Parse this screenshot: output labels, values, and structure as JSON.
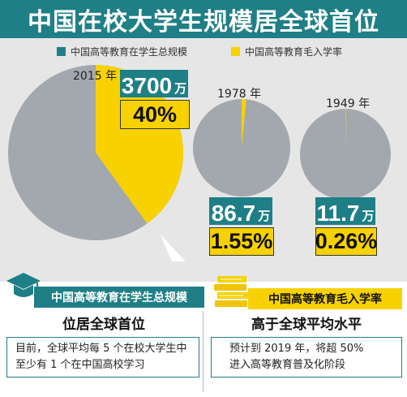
{
  "header": {
    "title": "中国在校大学生规模居全球首位"
  },
  "colors": {
    "teal": "#1f7f86",
    "yellow": "#f7d200",
    "gray": "#a3a8ae",
    "panel": "#e6e6e6"
  },
  "chart_data": {
    "type": "pie",
    "title": "中国在校大学生规模居全球首位",
    "legend": [
      {
        "name": "中国高等教育在学生总规模",
        "color": "#1f7f86"
      },
      {
        "name": "中国高等教育毛入学率",
        "color": "#f7d200"
      }
    ],
    "legend_position": "top",
    "pies": [
      {
        "year_label": "2015 年",
        "total_value": "3700",
        "total_unit": "万",
        "rate_percent": 40,
        "rate_label": "40%"
      },
      {
        "year_label": "1978 年",
        "total_value": "86.7",
        "total_unit": "万",
        "rate_percent": 1.55,
        "rate_label": "1.55%"
      },
      {
        "year_label": "1949 年",
        "total_value": "11.7",
        "total_unit": "万",
        "rate_percent": 0.26,
        "rate_label": "0.26%"
      }
    ]
  },
  "cards": {
    "left": {
      "head": "中国高等教育在学生总规模",
      "title": "位居全球首位",
      "line1": "目前，全球平均每 5 个在校大学生中",
      "line2": "至少有 1 个在中国高校学习"
    },
    "right": {
      "head": "中国高等教育毛入学率",
      "title": "高于全球平均水平",
      "line1": "预计到 2019 年，将超 50%",
      "line2": "进入高等教育普及化阶段"
    }
  }
}
